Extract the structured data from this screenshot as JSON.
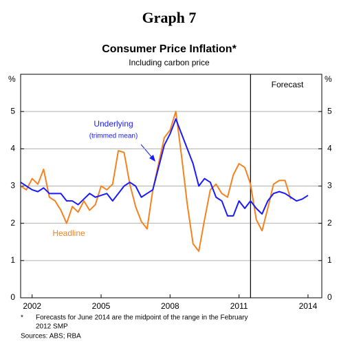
{
  "chart_data": {
    "type": "line",
    "header": "Graph 7",
    "title": "Consumer Price Inflation*",
    "subtitle": "Including carbon price",
    "y_unit": "%",
    "xlim": [
      2001.5,
      2014.6
    ],
    "xticks": [
      2002,
      2005,
      2008,
      2011,
      2014
    ],
    "ylim": [
      0,
      6
    ],
    "yticks": [
      0,
      1,
      2,
      3,
      4,
      5
    ],
    "grid": true,
    "forecast_start": 2011.5,
    "annotations": {
      "forecast": "Forecast",
      "underlying": "Underlying",
      "underlying_note": "(trimmed mean)",
      "headline": "Headline"
    },
    "series": [
      {
        "name": "Headline",
        "color": "#f5821f",
        "x": [
          2001.5,
          2001.75,
          2002,
          2002.25,
          2002.5,
          2002.75,
          2003,
          2003.25,
          2003.5,
          2003.75,
          2004,
          2004.25,
          2004.5,
          2004.75,
          2005,
          2005.25,
          2005.5,
          2005.75,
          2006,
          2006.25,
          2006.5,
          2006.75,
          2007,
          2007.25,
          2007.5,
          2007.75,
          2008,
          2008.25,
          2008.5,
          2008.75,
          2009,
          2009.25,
          2009.5,
          2009.75,
          2010,
          2010.25,
          2010.5,
          2010.75,
          2011,
          2011.25,
          2011.5,
          2011.75,
          2012,
          2012.25,
          2012.5,
          2012.75,
          2013,
          2013.25
        ],
        "values": [
          3.0,
          2.9,
          3.2,
          3.05,
          3.45,
          2.7,
          2.6,
          2.35,
          2.0,
          2.45,
          2.3,
          2.6,
          2.35,
          2.5,
          3.0,
          2.9,
          3.05,
          3.95,
          3.9,
          3.05,
          2.45,
          2.05,
          1.85,
          2.9,
          3.6,
          4.3,
          4.5,
          5.0,
          3.8,
          2.5,
          1.45,
          1.25,
          2.1,
          2.9,
          3.05,
          2.8,
          2.7,
          3.3,
          3.6,
          3.5,
          3.05,
          2.1,
          1.8,
          2.4,
          3.05,
          3.15,
          3.15,
          2.65
        ]
      },
      {
        "name": "Underlying",
        "color": "#1a1aff",
        "x": [
          2001.5,
          2001.75,
          2002,
          2002.25,
          2002.5,
          2002.75,
          2003,
          2003.25,
          2003.5,
          2003.75,
          2004,
          2004.25,
          2004.5,
          2004.75,
          2005,
          2005.25,
          2005.5,
          2005.75,
          2006,
          2006.25,
          2006.5,
          2006.75,
          2007,
          2007.25,
          2007.5,
          2007.75,
          2008,
          2008.25,
          2008.5,
          2008.75,
          2009,
          2009.25,
          2009.5,
          2009.75,
          2010,
          2010.25,
          2010.5,
          2010.75,
          2011,
          2011.25,
          2011.5,
          2011.75,
          2012,
          2012.25,
          2012.5,
          2012.75,
          2013,
          2013.25,
          2013.5,
          2013.75,
          2014
        ],
        "values": [
          3.1,
          3.0,
          2.9,
          2.85,
          2.95,
          2.8,
          2.8,
          2.8,
          2.6,
          2.6,
          2.5,
          2.65,
          2.8,
          2.7,
          2.75,
          2.8,
          2.6,
          2.8,
          3.0,
          3.1,
          3.0,
          2.7,
          2.8,
          2.9,
          3.5,
          4.1,
          4.4,
          4.8,
          4.4,
          4.0,
          3.6,
          3.0,
          3.2,
          3.1,
          2.7,
          2.6,
          2.2,
          2.2,
          2.6,
          2.4,
          2.6,
          2.4,
          2.25,
          2.6,
          2.8,
          2.85,
          2.8,
          2.7,
          2.6,
          2.65,
          2.75
        ]
      }
    ],
    "footnote_marker": "*",
    "footnote": [
      "Forecasts for June 2014 are the midpoint of the range in the February",
      "2012 SMP"
    ],
    "sources": "Sources: ABS; RBA"
  }
}
